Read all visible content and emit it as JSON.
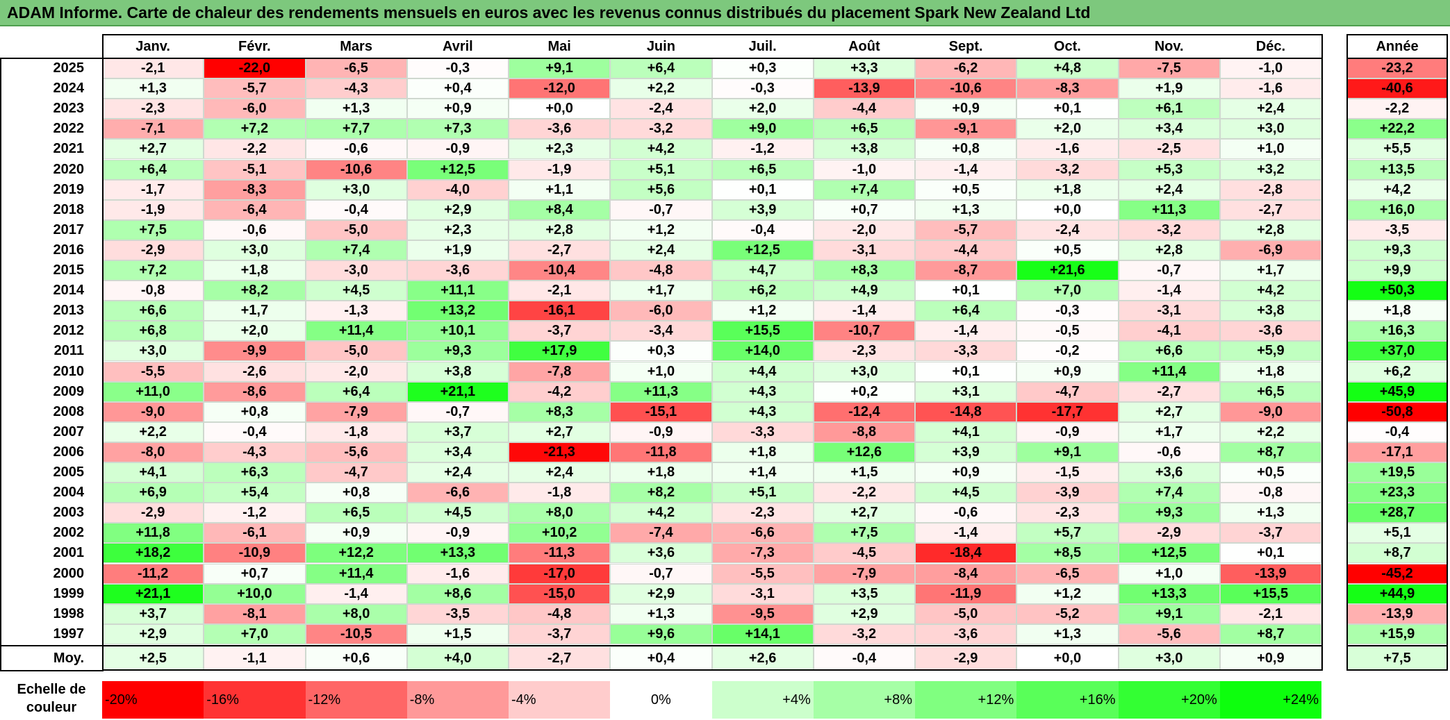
{
  "title": "ADAM Informe. Carte de chaleur des rendements mensuels en euros avec les revenus connus distribués du placement Spark New Zealand Ltd",
  "chart_data": {
    "type": "heatmap",
    "title": "ADAM Informe. Carte de chaleur des rendements mensuels en euros avec les revenus connus distribués du placement Spark New Zealand Ltd",
    "columns": [
      "Janv.",
      "Févr.",
      "Mars",
      "Avril",
      "Mai",
      "Juin",
      "Juil.",
      "Août",
      "Sept.",
      "Oct.",
      "Nov.",
      "Déc."
    ],
    "annual_header": "Année",
    "rows": [
      {
        "year": "2025",
        "values": [
          "-2,1",
          "-22,0",
          "-6,5",
          "-0,3",
          "+9,1",
          "+6,4",
          "+0,3",
          "+3,3",
          "-6,2",
          "+4,8",
          "-7,5",
          "-1,0"
        ],
        "annual": "-23,2"
      },
      {
        "year": "2024",
        "values": [
          "+1,3",
          "-5,7",
          "-4,3",
          "+0,4",
          "-12,0",
          "+2,2",
          "-0,3",
          "-13,9",
          "-10,6",
          "-8,3",
          "+1,9",
          "-1,6"
        ],
        "annual": "-40,6"
      },
      {
        "year": "2023",
        "values": [
          "-2,3",
          "-6,0",
          "+1,3",
          "+0,9",
          "+0,0",
          "-2,4",
          "+2,0",
          "-4,4",
          "+0,9",
          "+0,1",
          "+6,1",
          "+2,4"
        ],
        "annual": "-2,2"
      },
      {
        "year": "2022",
        "values": [
          "-7,1",
          "+7,2",
          "+7,7",
          "+7,3",
          "-3,6",
          "-3,2",
          "+9,0",
          "+6,5",
          "-9,1",
          "+2,0",
          "+3,4",
          "+3,0"
        ],
        "annual": "+22,2"
      },
      {
        "year": "2021",
        "values": [
          "+2,7",
          "-2,2",
          "-0,6",
          "-0,9",
          "+2,3",
          "+4,2",
          "-1,2",
          "+3,8",
          "+0,8",
          "-1,6",
          "-2,5",
          "+1,0"
        ],
        "annual": "+5,5"
      },
      {
        "year": "2020",
        "values": [
          "+6,4",
          "-5,1",
          "-10,6",
          "+12,5",
          "-1,9",
          "+5,1",
          "+6,5",
          "-1,0",
          "-1,4",
          "-3,2",
          "+5,3",
          "+3,2"
        ],
        "annual": "+13,5"
      },
      {
        "year": "2019",
        "values": [
          "-1,7",
          "-8,3",
          "+3,0",
          "-4,0",
          "+1,1",
          "+5,6",
          "+0,1",
          "+7,4",
          "+0,5",
          "+1,8",
          "+2,4",
          "-2,8"
        ],
        "annual": "+4,2"
      },
      {
        "year": "2018",
        "values": [
          "-1,9",
          "-6,4",
          "-0,4",
          "+2,9",
          "+8,4",
          "-0,7",
          "+3,9",
          "+0,7",
          "+1,3",
          "+0,0",
          "+11,3",
          "-2,7"
        ],
        "annual": "+16,0"
      },
      {
        "year": "2017",
        "values": [
          "+7,5",
          "-0,6",
          "-5,0",
          "+2,3",
          "+2,8",
          "+1,2",
          "-0,4",
          "-2,0",
          "-5,7",
          "-2,4",
          "-3,2",
          "+2,8"
        ],
        "annual": "-3,5"
      },
      {
        "year": "2016",
        "values": [
          "-2,9",
          "+3,0",
          "+7,4",
          "+1,9",
          "-2,7",
          "+2,4",
          "+12,5",
          "-3,1",
          "-4,4",
          "+0,5",
          "+2,8",
          "-6,9"
        ],
        "annual": "+9,3"
      },
      {
        "year": "2015",
        "values": [
          "+7,2",
          "+1,8",
          "-3,0",
          "-3,6",
          "-10,4",
          "-4,8",
          "+4,7",
          "+8,3",
          "-8,7",
          "+21,6",
          "-0,7",
          "+1,7"
        ],
        "annual": "+9,9"
      },
      {
        "year": "2014",
        "values": [
          "-0,8",
          "+8,2",
          "+4,5",
          "+11,1",
          "-2,1",
          "+1,7",
          "+6,2",
          "+4,9",
          "+0,1",
          "+7,0",
          "-1,4",
          "+4,2"
        ],
        "annual": "+50,3"
      },
      {
        "year": "2013",
        "values": [
          "+6,6",
          "+1,7",
          "-1,3",
          "+13,2",
          "-16,1",
          "-6,0",
          "+1,2",
          "-1,4",
          "+6,4",
          "-0,3",
          "-3,1",
          "+3,8"
        ],
        "annual": "+1,8"
      },
      {
        "year": "2012",
        "values": [
          "+6,8",
          "+2,0",
          "+11,4",
          "+10,1",
          "-3,7",
          "-3,4",
          "+15,5",
          "-10,7",
          "-1,4",
          "-0,5",
          "-4,1",
          "-3,6"
        ],
        "annual": "+16,3"
      },
      {
        "year": "2011",
        "values": [
          "+3,0",
          "-9,9",
          "-5,0",
          "+9,3",
          "+17,9",
          "+0,3",
          "+14,0",
          "-2,3",
          "-3,3",
          "-0,2",
          "+6,6",
          "+5,9"
        ],
        "annual": "+37,0"
      },
      {
        "year": "2010",
        "values": [
          "-5,5",
          "-2,6",
          "-2,0",
          "+3,8",
          "-7,8",
          "+1,0",
          "+4,4",
          "+3,0",
          "+0,1",
          "+0,9",
          "+11,4",
          "+1,8"
        ],
        "annual": "+6,2"
      },
      {
        "year": "2009",
        "values": [
          "+11,0",
          "-8,6",
          "+6,4",
          "+21,1",
          "-4,2",
          "+11,3",
          "+4,3",
          "+0,2",
          "+3,1",
          "-4,7",
          "-2,7",
          "+6,5"
        ],
        "annual": "+45,9"
      },
      {
        "year": "2008",
        "values": [
          "-9,0",
          "+0,8",
          "-7,9",
          "-0,7",
          "+8,3",
          "-15,1",
          "+4,3",
          "-12,4",
          "-14,8",
          "-17,7",
          "+2,7",
          "-9,0"
        ],
        "annual": "-50,8"
      },
      {
        "year": "2007",
        "values": [
          "+2,2",
          "-0,4",
          "-1,8",
          "+3,7",
          "+2,7",
          "-0,9",
          "-3,3",
          "-8,8",
          "+4,1",
          "-0,9",
          "+1,7",
          "+2,2"
        ],
        "annual": "-0,4"
      },
      {
        "year": "2006",
        "values": [
          "-8,0",
          "-4,3",
          "-5,6",
          "+3,4",
          "-21,3",
          "-11,8",
          "+1,8",
          "+12,6",
          "+3,9",
          "+9,1",
          "-0,6",
          "+8,7"
        ],
        "annual": "-17,1"
      },
      {
        "year": "2005",
        "values": [
          "+4,1",
          "+6,3",
          "-4,7",
          "+2,4",
          "+2,4",
          "+1,8",
          "+1,4",
          "+1,5",
          "+0,9",
          "-1,5",
          "+3,6",
          "+0,5"
        ],
        "annual": "+19,5"
      },
      {
        "year": "2004",
        "values": [
          "+6,9",
          "+5,4",
          "+0,8",
          "-6,6",
          "-1,8",
          "+8,2",
          "+5,1",
          "-2,2",
          "+4,5",
          "-3,9",
          "+7,4",
          "-0,8"
        ],
        "annual": "+23,3"
      },
      {
        "year": "2003",
        "values": [
          "-2,9",
          "-1,2",
          "+6,5",
          "+4,5",
          "+8,0",
          "+4,2",
          "-2,3",
          "+2,7",
          "-0,6",
          "-2,3",
          "+9,3",
          "+1,3"
        ],
        "annual": "+28,7"
      },
      {
        "year": "2002",
        "values": [
          "+11,8",
          "-6,1",
          "+0,9",
          "-0,9",
          "+10,2",
          "-7,4",
          "-6,6",
          "+7,5",
          "-1,4",
          "+5,7",
          "-2,9",
          "-3,7"
        ],
        "annual": "+5,1"
      },
      {
        "year": "2001",
        "values": [
          "+18,2",
          "-10,9",
          "+12,2",
          "+13,3",
          "-11,3",
          "+3,6",
          "-7,3",
          "-4,5",
          "-18,4",
          "+8,5",
          "+12,5",
          "+0,1"
        ],
        "annual": "+8,7"
      },
      {
        "year": "2000",
        "values": [
          "-11,2",
          "+0,7",
          "+11,4",
          "-1,6",
          "-17,0",
          "-0,7",
          "-5,5",
          "-7,9",
          "-8,4",
          "-6,5",
          "+1,0",
          "-13,9"
        ],
        "annual": "-45,2"
      },
      {
        "year": "1999",
        "values": [
          "+21,1",
          "+10,0",
          "-1,4",
          "+8,6",
          "-15,0",
          "+2,9",
          "-3,1",
          "+3,5",
          "-11,9",
          "+1,2",
          "+13,3",
          "+15,5"
        ],
        "annual": "+44,9"
      },
      {
        "year": "1998",
        "values": [
          "+3,7",
          "-8,1",
          "+8,0",
          "-3,5",
          "-4,8",
          "+1,3",
          "-9,5",
          "+2,9",
          "-5,0",
          "-5,2",
          "+9,1",
          "-2,1"
        ],
        "annual": "-13,9"
      },
      {
        "year": "1997",
        "values": [
          "+2,9",
          "+7,0",
          "-10,5",
          "+1,5",
          "-3,7",
          "+9,6",
          "+14,1",
          "-3,2",
          "-3,6",
          "+1,3",
          "-5,6",
          "+8,7"
        ],
        "annual": "+15,9"
      }
    ],
    "average": {
      "label": "Moy.",
      "values": [
        "+2,5",
        "-1,1",
        "+0,6",
        "+4,0",
        "-2,7",
        "+0,4",
        "+2,6",
        "-0,4",
        "-2,9",
        "+0,0",
        "+3,0",
        "+0,9"
      ],
      "annual": "+7,5"
    },
    "scale": {
      "label": "Echelle de couleur",
      "labels": [
        "-20%",
        "-16%",
        "-12%",
        "-8%",
        "-4%",
        "0%",
        "+4%",
        "+8%",
        "+12%",
        "+16%",
        "+20%",
        "+24%"
      ],
      "colors": [
        "#ff0000",
        "#ff3333",
        "#ff6666",
        "#ff9999",
        "#ffcccc",
        "#ffffff",
        "#ccffcc",
        "#a6ffa6",
        "#80ff80",
        "#59ff59",
        "#33ff33",
        "#0dff0d"
      ]
    }
  }
}
